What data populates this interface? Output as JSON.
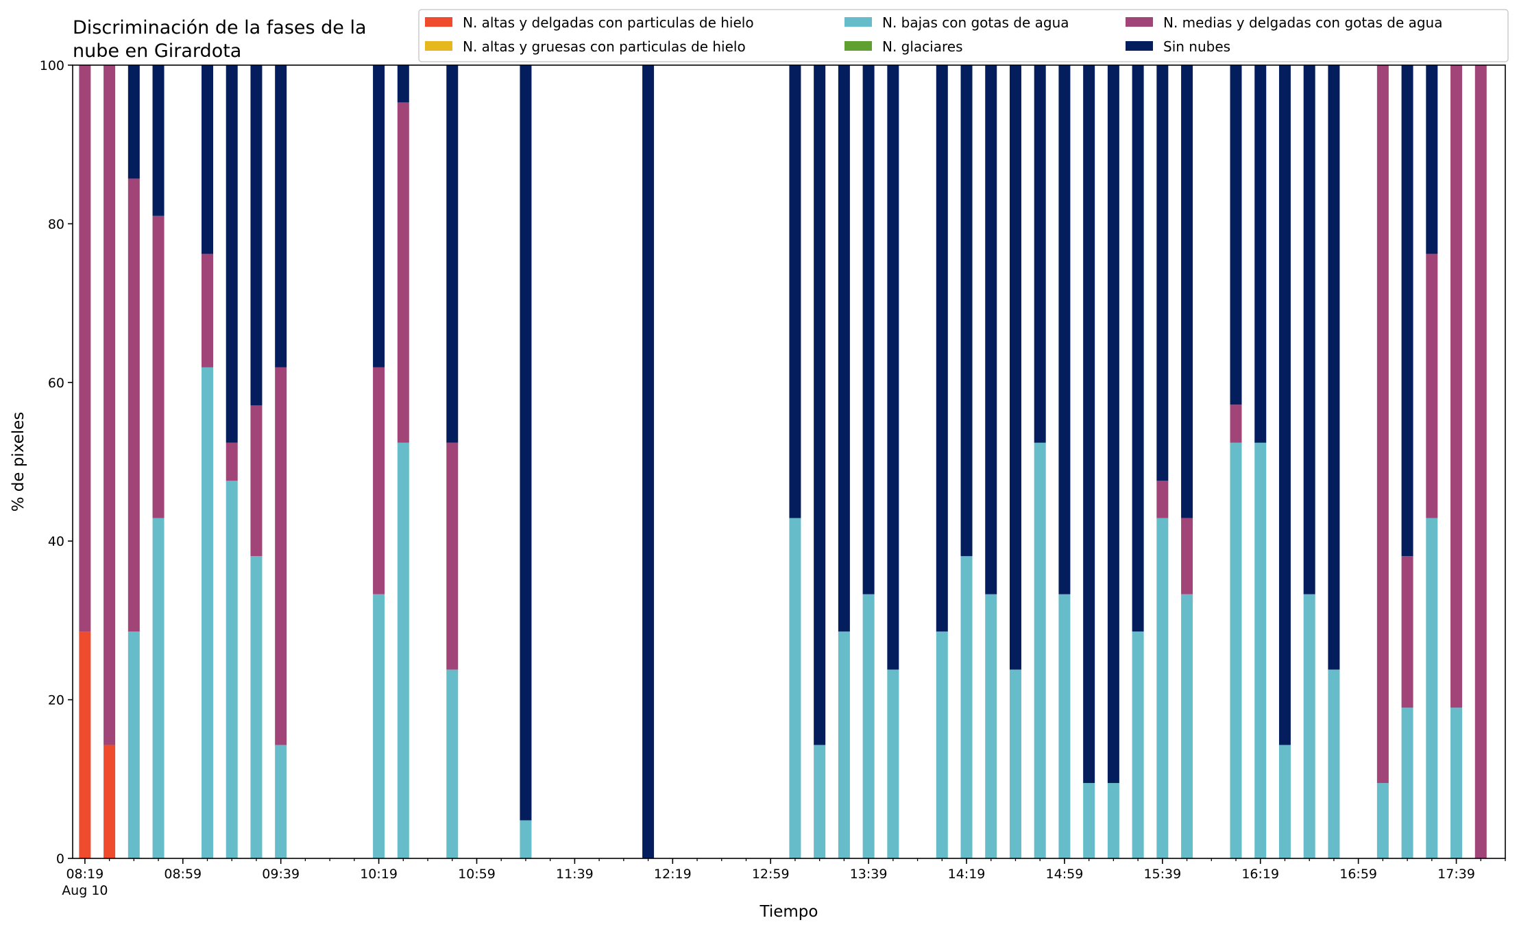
{
  "chart_data": {
    "type": "bar",
    "stacked": true,
    "title": "Discriminación de la fases de la nube en Girardota",
    "title_lines": [
      "Discriminación de la fases de la",
      "nube en Girardota"
    ],
    "xlabel": "Tiempo",
    "ylabel": "% de pixeles",
    "ylim": [
      0,
      100
    ],
    "yticks": [
      0,
      20,
      40,
      60,
      80,
      100
    ],
    "xlim": [
      "08:14",
      "17:59"
    ],
    "xticks": [
      {
        "time": "08:19",
        "label": "08:19",
        "sublabel": "Aug 10"
      },
      {
        "time": "08:59",
        "label": "08:59"
      },
      {
        "time": "09:39",
        "label": "09:39"
      },
      {
        "time": "10:19",
        "label": "10:19"
      },
      {
        "time": "10:59",
        "label": "10:59"
      },
      {
        "time": "11:39",
        "label": "11:39"
      },
      {
        "time": "12:19",
        "label": "12:19"
      },
      {
        "time": "12:59",
        "label": "12:59"
      },
      {
        "time": "13:39",
        "label": "13:39"
      },
      {
        "time": "14:19",
        "label": "14:19"
      },
      {
        "time": "14:59",
        "label": "14:59"
      },
      {
        "time": "15:39",
        "label": "15:39"
      },
      {
        "time": "16:19",
        "label": "16:19"
      },
      {
        "time": "16:59",
        "label": "16:59"
      },
      {
        "time": "17:39",
        "label": "17:39"
      }
    ],
    "minor_tick_interval_minutes": 10,
    "grid": false,
    "legend_position": "top-right",
    "legend_columns": 3,
    "series": [
      {
        "name": "N. altas y delgadas con particulas de hielo",
        "color": "#ee4c2c"
      },
      {
        "name": "N. altas y gruesas con particulas de hielo",
        "color": "#e6b81e"
      },
      {
        "name": "N. bajas con gotas de agua",
        "color": "#66bcc8"
      },
      {
        "name": "N. glaciares",
        "color": "#5fa030"
      },
      {
        "name": "N. medias y delgadas con gotas de agua",
        "color": "#a14478"
      },
      {
        "name": "Sin nubes",
        "color": "#041e5d"
      }
    ],
    "bars": [
      {
        "time": "08:19",
        "values": [
          28.6,
          0,
          0,
          0,
          71.4,
          0
        ]
      },
      {
        "time": "08:29",
        "values": [
          14.3,
          0,
          0,
          0,
          85.7,
          0
        ]
      },
      {
        "time": "08:39",
        "values": [
          0,
          0,
          28.6,
          0,
          57.1,
          14.3
        ]
      },
      {
        "time": "08:49",
        "values": [
          0,
          0,
          42.9,
          0,
          38.1,
          19.0
        ]
      },
      {
        "time": "09:09",
        "values": [
          0,
          0,
          61.9,
          0,
          14.3,
          23.8
        ]
      },
      {
        "time": "09:19",
        "values": [
          0,
          0,
          47.6,
          0,
          4.8,
          47.6
        ]
      },
      {
        "time": "09:29",
        "values": [
          0,
          0,
          38.1,
          0,
          19.0,
          42.9
        ]
      },
      {
        "time": "09:39",
        "values": [
          0,
          0,
          14.3,
          0,
          47.6,
          38.1
        ]
      },
      {
        "time": "10:19",
        "values": [
          0,
          0,
          33.3,
          0,
          28.6,
          38.1
        ]
      },
      {
        "time": "10:29",
        "values": [
          0,
          0,
          52.4,
          0,
          42.9,
          4.7
        ]
      },
      {
        "time": "10:49",
        "values": [
          0,
          0,
          23.8,
          0,
          28.6,
          47.6
        ]
      },
      {
        "time": "11:19",
        "values": [
          0,
          0,
          4.8,
          0,
          0,
          95.2
        ]
      },
      {
        "time": "12:09",
        "values": [
          0,
          0,
          0,
          0,
          0,
          100
        ]
      },
      {
        "time": "13:09",
        "values": [
          0,
          0,
          42.9,
          0,
          0,
          57.1
        ]
      },
      {
        "time": "13:19",
        "values": [
          0,
          0,
          14.3,
          0,
          0,
          85.7
        ]
      },
      {
        "time": "13:29",
        "values": [
          0,
          0,
          28.6,
          0,
          0,
          71.4
        ]
      },
      {
        "time": "13:39",
        "values": [
          0,
          0,
          33.3,
          0,
          0,
          66.7
        ]
      },
      {
        "time": "13:49",
        "values": [
          0,
          0,
          23.8,
          0,
          0,
          76.2
        ]
      },
      {
        "time": "14:09",
        "values": [
          0,
          0,
          28.6,
          0,
          0,
          71.4
        ]
      },
      {
        "time": "14:19",
        "values": [
          0,
          0,
          38.1,
          0,
          0,
          61.9
        ]
      },
      {
        "time": "14:29",
        "values": [
          0,
          0,
          33.3,
          0,
          0,
          66.7
        ]
      },
      {
        "time": "14:39",
        "values": [
          0,
          0,
          23.8,
          0,
          0,
          76.2
        ]
      },
      {
        "time": "14:49",
        "values": [
          0,
          0,
          52.4,
          0,
          0,
          47.6
        ]
      },
      {
        "time": "14:59",
        "values": [
          0,
          0,
          33.3,
          0,
          0,
          66.7
        ]
      },
      {
        "time": "15:09",
        "values": [
          0,
          0,
          9.5,
          0,
          0,
          90.5
        ]
      },
      {
        "time": "15:19",
        "values": [
          0,
          0,
          9.5,
          0,
          0,
          90.5
        ]
      },
      {
        "time": "15:29",
        "values": [
          0,
          0,
          28.6,
          0,
          0,
          71.4
        ]
      },
      {
        "time": "15:39",
        "values": [
          0,
          0,
          42.9,
          0,
          4.7,
          52.4
        ]
      },
      {
        "time": "15:49",
        "values": [
          0,
          0,
          33.3,
          0,
          9.6,
          57.1
        ]
      },
      {
        "time": "16:09",
        "values": [
          0,
          0,
          52.4,
          0,
          4.8,
          42.8
        ]
      },
      {
        "time": "16:19",
        "values": [
          0,
          0,
          52.4,
          0,
          0,
          47.6
        ]
      },
      {
        "time": "16:29",
        "values": [
          0,
          0,
          14.3,
          0,
          0,
          85.7
        ]
      },
      {
        "time": "16:39",
        "values": [
          0,
          0,
          33.3,
          0,
          0,
          66.7
        ]
      },
      {
        "time": "16:49",
        "values": [
          0,
          0,
          23.8,
          0,
          0,
          76.2
        ]
      },
      {
        "time": "17:09",
        "values": [
          0,
          0,
          9.5,
          0,
          90.5,
          0
        ]
      },
      {
        "time": "17:19",
        "values": [
          0,
          0,
          19.0,
          0,
          19.1,
          61.9
        ]
      },
      {
        "time": "17:29",
        "values": [
          0,
          0,
          42.9,
          0,
          33.3,
          23.8
        ]
      },
      {
        "time": "17:39",
        "values": [
          0,
          0,
          19.0,
          0,
          81.0,
          0
        ]
      },
      {
        "time": "17:49",
        "values": [
          0,
          0,
          0,
          0,
          100,
          0
        ]
      }
    ]
  }
}
